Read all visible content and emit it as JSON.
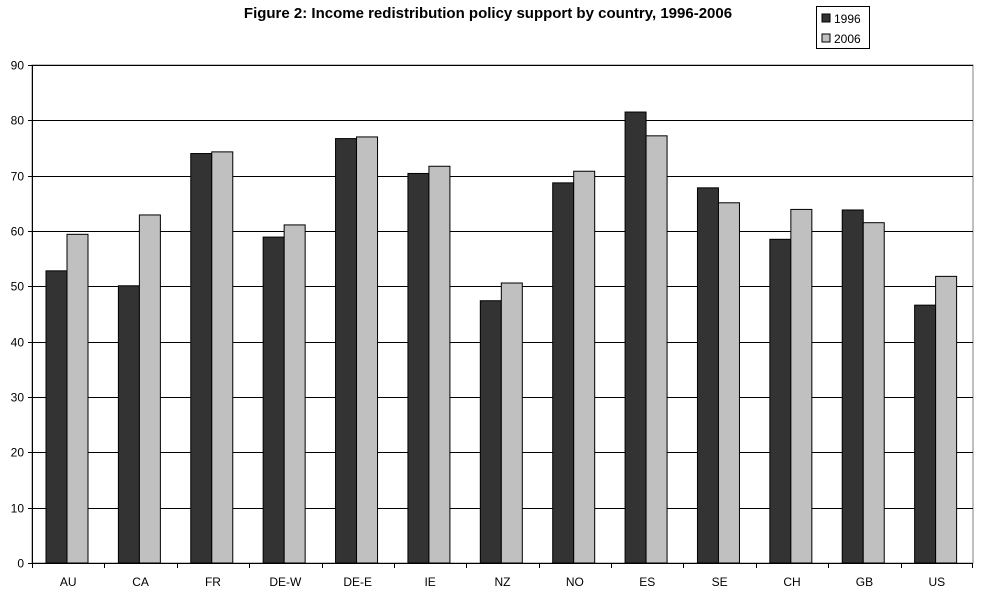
{
  "chart_data": {
    "type": "bar",
    "title": "Figure 2: Income redistribution policy support by country, 1996-2006",
    "xlabel": "",
    "ylabel": "",
    "ylim": [
      0,
      90
    ],
    "yticks": [
      0,
      10,
      20,
      30,
      40,
      50,
      60,
      70,
      80,
      90
    ],
    "grid": true,
    "legend_position": "top-right",
    "categories": [
      "AU",
      "CA",
      "FR",
      "DE-W",
      "DE-E",
      "IE",
      "NZ",
      "NO",
      "ES",
      "SE",
      "CH",
      "GB",
      "US"
    ],
    "series": [
      {
        "name": "1996",
        "color": "#333333",
        "values": [
          52.8,
          50.1,
          74.0,
          58.9,
          76.7,
          70.4,
          47.4,
          68.7,
          81.5,
          67.8,
          58.5,
          63.8,
          46.6
        ]
      },
      {
        "name": "2006",
        "color": "#c0c0c0",
        "values": [
          59.4,
          62.9,
          74.3,
          61.1,
          77.0,
          71.7,
          50.6,
          70.8,
          77.2,
          65.1,
          63.9,
          61.5,
          51.8
        ]
      }
    ]
  }
}
